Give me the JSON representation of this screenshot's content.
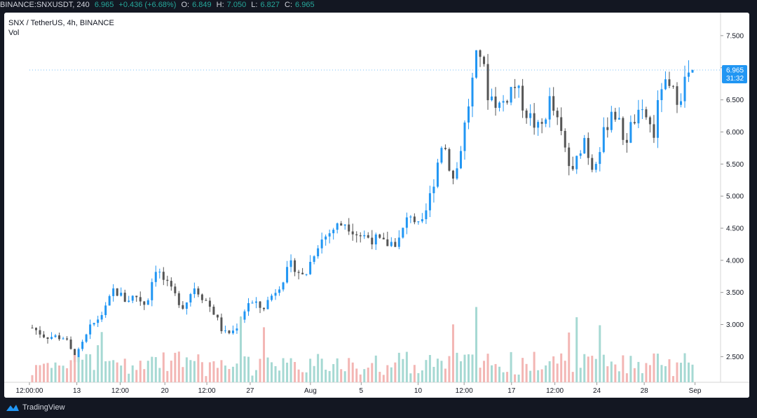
{
  "header": {
    "symbol": "BINANCE:SNXUSDT, 240",
    "last": "6.965",
    "change": "+0.436 (+6.68%)",
    "o_label": "O:",
    "o_value": "6.849",
    "h_label": "H:",
    "h_value": "7.050",
    "l_label": "L:",
    "l_value": "6.827",
    "c_label": "C:",
    "c_value": "6.965"
  },
  "legend": {
    "title": "SNX / TetherUS, 4h, BINANCE",
    "volume_label": "Vol"
  },
  "price_badge": {
    "value": "6.965",
    "countdown": "31:32"
  },
  "footer": {
    "brand": "TradingView"
  },
  "colors": {
    "up": "#2196f3",
    "down": "#555555",
    "vol_up": "#a6d9d3",
    "vol_down": "#f3b6b4",
    "badge": "#2196f3"
  },
  "chart_data": {
    "type": "candlestick",
    "title": "SNX / TetherUS, 4h, BINANCE",
    "y_ticks": [
      "7.500",
      "7.000",
      "6.500",
      "6.000",
      "5.500",
      "5.000",
      "4.500",
      "4.000",
      "3.500",
      "3.000",
      "2.500"
    ],
    "ylim": [
      2.1,
      7.75
    ],
    "x_ticks": [
      "12:00:00",
      "13",
      "12:00",
      "20",
      "12:00",
      "27",
      "Aug",
      "5",
      "10",
      "12:00",
      "17",
      "12:00",
      "24",
      "28",
      "Sep"
    ],
    "x_range": [
      "12:00:00",
      "Sep"
    ],
    "grid": false,
    "close_path": [
      [
        0,
        2.95
      ],
      [
        10,
        2.82
      ],
      [
        25,
        2.8
      ],
      [
        33,
        2.45
      ],
      [
        45,
        2.95
      ],
      [
        57,
        3.25
      ],
      [
        63,
        3.55
      ],
      [
        72,
        3.38
      ],
      [
        80,
        3.45
      ],
      [
        88,
        3.3
      ],
      [
        95,
        3.9
      ],
      [
        106,
        3.55
      ],
      [
        117,
        3.28
      ],
      [
        125,
        3.6
      ],
      [
        135,
        3.35
      ],
      [
        140,
        3.2
      ],
      [
        148,
        2.85
      ],
      [
        156,
        2.9
      ],
      [
        167,
        3.35
      ],
      [
        178,
        3.25
      ],
      [
        190,
        3.6
      ],
      [
        201,
        3.95
      ],
      [
        210,
        3.72
      ],
      [
        220,
        4.25
      ],
      [
        233,
        4.5
      ],
      [
        242,
        4.6
      ],
      [
        252,
        4.4
      ],
      [
        262,
        4.35
      ],
      [
        272,
        4.25
      ],
      [
        283,
        4.3
      ],
      [
        292,
        4.75
      ],
      [
        300,
        4.45
      ],
      [
        308,
        5.05
      ],
      [
        317,
        5.9
      ],
      [
        326,
        5.2
      ],
      [
        338,
        6.55
      ],
      [
        345,
        7.35
      ],
      [
        352,
        6.6
      ],
      [
        362,
        6.4
      ],
      [
        372,
        6.75
      ],
      [
        382,
        6.3
      ],
      [
        392,
        6.0
      ],
      [
        400,
        6.5
      ],
      [
        410,
        5.85
      ],
      [
        417,
        5.3
      ],
      [
        426,
        5.95
      ],
      [
        432,
        5.45
      ],
      [
        440,
        5.85
      ],
      [
        448,
        6.4
      ],
      [
        458,
        5.85
      ],
      [
        465,
        6.2
      ],
      [
        474,
        6.25
      ],
      [
        480,
        5.95
      ],
      [
        486,
        6.75
      ],
      [
        494,
        6.6
      ],
      [
        500,
        6.55
      ],
      [
        505,
        6.85
      ],
      [
        510,
        6.965
      ]
    ],
    "candle_count": 172
  }
}
